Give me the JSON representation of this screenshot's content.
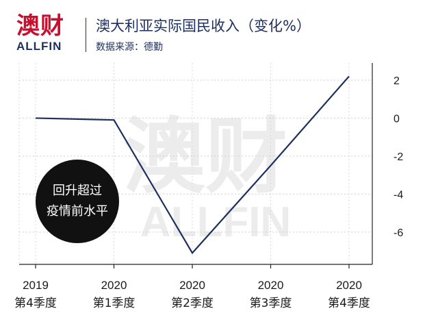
{
  "brand": {
    "name_cn": "澳财",
    "name_en": "ALLFIN",
    "watermark_cn": "澳财",
    "watermark_en": "ALLFIN"
  },
  "header": {
    "title": "澳大利亚实际国民收入（变化%）",
    "subtitle": "数据来源：德勤"
  },
  "note": {
    "line1": "回升超过",
    "line2": "疫情前水平"
  },
  "colors": {
    "line": "#1e2f5e",
    "brand_red": "#c8102e",
    "brand_navy": "#1e2f5e"
  },
  "chart_data": {
    "type": "line",
    "categories": [
      [
        "2019",
        "第4季度"
      ],
      [
        "2020",
        "第1季度"
      ],
      [
        "2020",
        "第2季度"
      ],
      [
        "2020",
        "第3季度"
      ],
      [
        "2020",
        "第4季度"
      ]
    ],
    "values": [
      0.0,
      -0.1,
      -7.1,
      -2.5,
      2.2
    ],
    "yticks": [
      "2",
      "0",
      "-2",
      "-4",
      "-6"
    ],
    "ylim": [
      -7.7,
      2.9
    ],
    "yaxis_side": "right",
    "grid": "horizontal dotted"
  }
}
